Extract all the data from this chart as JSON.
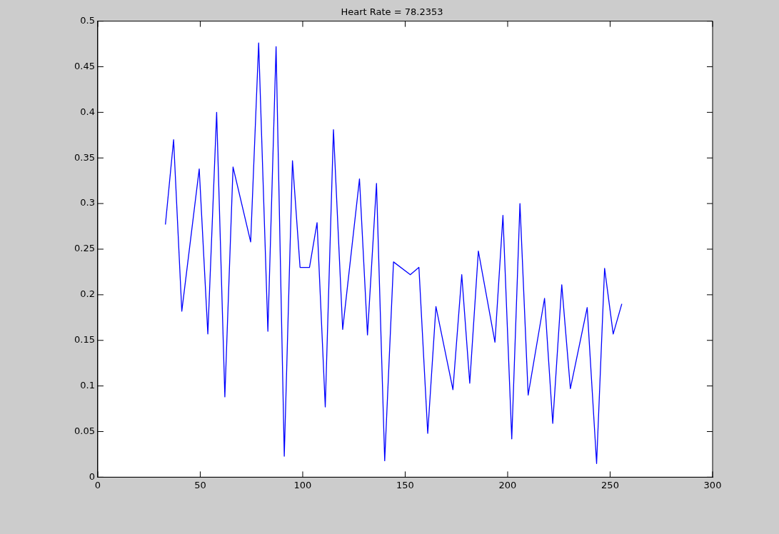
{
  "chart_data": {
    "type": "line",
    "title": "Heart Rate = 78.2353",
    "x": [
      33,
      37,
      41,
      49.5,
      53.7,
      58,
      62,
      66,
      74.6,
      78.5,
      83,
      87,
      91,
      95,
      98.7,
      103.3,
      107,
      111,
      115,
      119.5,
      127.7,
      131.6,
      136,
      140,
      144.3,
      152.5,
      156.7,
      161,
      165,
      173.3,
      177.6,
      181.5,
      185.7,
      193.8,
      197.7,
      202,
      206,
      210,
      218,
      222,
      226.4,
      230.6,
      238.8,
      243.4,
      247.3,
      251.5,
      255.7
    ],
    "series": [
      {
        "color": "#0000ff",
        "values": [
          0.277,
          0.37,
          0.182,
          0.338,
          0.157,
          0.4,
          0.088,
          0.34,
          0.258,
          0.476,
          0.16,
          0.472,
          0.023,
          0.347,
          0.23,
          0.23,
          0.279,
          0.077,
          0.381,
          0.162,
          0.327,
          0.156,
          0.322,
          0.018,
          0.236,
          0.222,
          0.23,
          0.048,
          0.187,
          0.096,
          0.222,
          0.103,
          0.248,
          0.148,
          0.287,
          0.042,
          0.3,
          0.09,
          0.196,
          0.059,
          0.211,
          0.097,
          0.186,
          0.015,
          0.229,
          0.157,
          0.19
        ]
      }
    ],
    "xlim": [
      0,
      300
    ],
    "xticks": [
      0,
      50,
      100,
      150,
      200,
      250,
      300
    ],
    "ylim": [
      0,
      0.5
    ],
    "yticks": [
      0,
      0.05,
      0.1,
      0.15,
      0.2,
      0.25,
      0.3,
      0.35,
      0.4,
      0.45,
      0.5
    ],
    "grid": false,
    "legend": false,
    "marker": "none",
    "line_style": "solid"
  }
}
